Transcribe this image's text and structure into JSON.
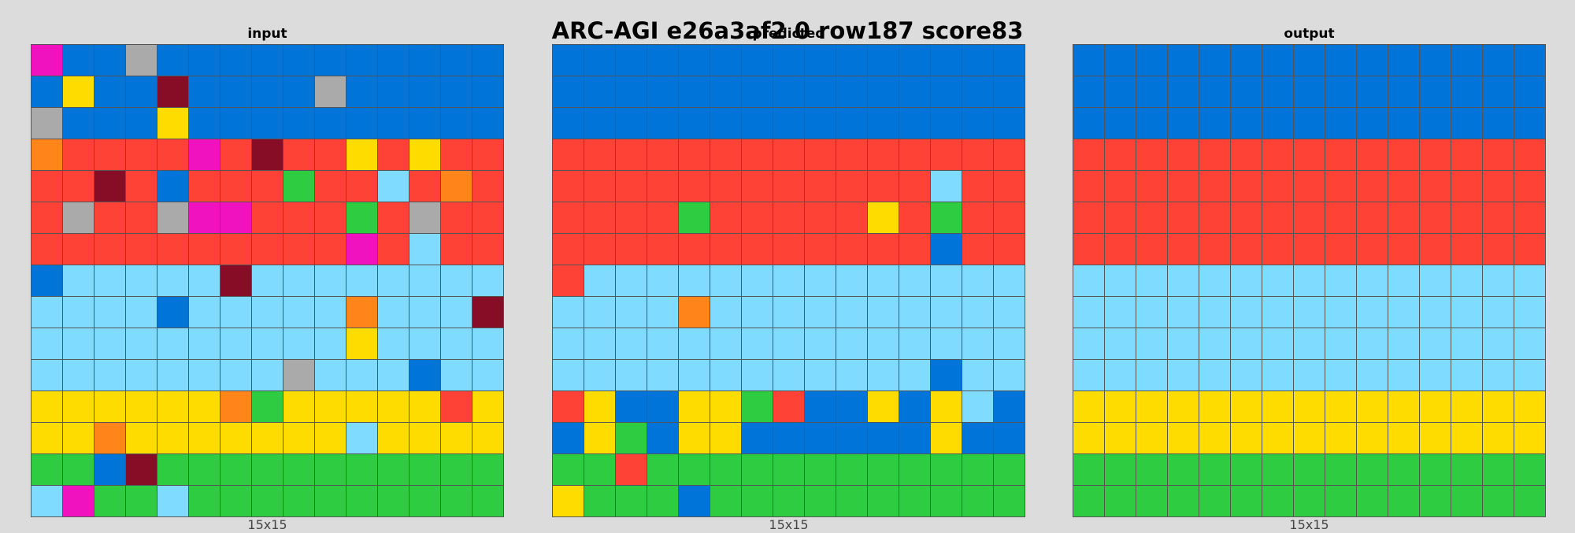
{
  "title": "ARC-AGI e26a3af2 0 row187 score83",
  "palette": {
    "0": "#000000",
    "1": "#0074d9",
    "2": "#ff4136",
    "3": "#2ecc40",
    "4": "#ffdc00",
    "5": "#aaaaaa",
    "6": "#f012be",
    "7": "#ff851b",
    "8": "#7fdbff",
    "9": "#870c25"
  },
  "panels": [
    {
      "title": "input",
      "size_label": "15x15",
      "grid": [
        [
          6,
          1,
          1,
          5,
          1,
          1,
          1,
          1,
          1,
          1,
          1,
          1,
          1,
          1,
          1
        ],
        [
          1,
          4,
          1,
          1,
          9,
          1,
          1,
          1,
          1,
          5,
          1,
          1,
          1,
          1,
          1
        ],
        [
          5,
          1,
          1,
          1,
          4,
          1,
          1,
          1,
          1,
          1,
          1,
          1,
          1,
          1,
          1
        ],
        [
          7,
          2,
          2,
          2,
          2,
          6,
          2,
          9,
          2,
          2,
          4,
          2,
          4,
          2,
          2
        ],
        [
          2,
          2,
          9,
          2,
          1,
          2,
          2,
          2,
          3,
          2,
          2,
          8,
          2,
          7,
          2
        ],
        [
          2,
          5,
          2,
          2,
          5,
          6,
          6,
          2,
          2,
          2,
          3,
          2,
          5,
          2,
          2
        ],
        [
          2,
          2,
          2,
          2,
          2,
          2,
          2,
          2,
          2,
          2,
          6,
          2,
          8,
          2,
          2
        ],
        [
          1,
          8,
          8,
          8,
          8,
          8,
          9,
          8,
          8,
          8,
          8,
          8,
          8,
          8,
          8
        ],
        [
          8,
          8,
          8,
          8,
          1,
          8,
          8,
          8,
          8,
          8,
          7,
          8,
          8,
          8,
          9
        ],
        [
          8,
          8,
          8,
          8,
          8,
          8,
          8,
          8,
          8,
          8,
          4,
          8,
          8,
          8,
          8
        ],
        [
          8,
          8,
          8,
          8,
          8,
          8,
          8,
          8,
          5,
          8,
          8,
          8,
          1,
          8,
          8
        ],
        [
          4,
          4,
          4,
          4,
          4,
          4,
          7,
          3,
          4,
          4,
          4,
          4,
          4,
          2,
          4
        ],
        [
          4,
          4,
          7,
          4,
          4,
          4,
          4,
          4,
          4,
          4,
          8,
          4,
          4,
          4,
          4
        ],
        [
          3,
          3,
          1,
          9,
          3,
          3,
          3,
          3,
          3,
          3,
          3,
          3,
          3,
          3,
          3
        ],
        [
          8,
          6,
          3,
          3,
          8,
          3,
          3,
          3,
          3,
          3,
          3,
          3,
          3,
          3,
          3
        ]
      ]
    },
    {
      "title": "predicted",
      "size_label": "15x15",
      "grid": [
        [
          1,
          1,
          1,
          1,
          1,
          1,
          1,
          1,
          1,
          1,
          1,
          1,
          1,
          1,
          1
        ],
        [
          1,
          1,
          1,
          1,
          1,
          1,
          1,
          1,
          1,
          1,
          1,
          1,
          1,
          1,
          1
        ],
        [
          1,
          1,
          1,
          1,
          1,
          1,
          1,
          1,
          1,
          1,
          1,
          1,
          1,
          1,
          1
        ],
        [
          2,
          2,
          2,
          2,
          2,
          2,
          2,
          2,
          2,
          2,
          2,
          2,
          2,
          2,
          2
        ],
        [
          2,
          2,
          2,
          2,
          2,
          2,
          2,
          2,
          2,
          2,
          2,
          2,
          8,
          2,
          2
        ],
        [
          2,
          2,
          2,
          2,
          3,
          2,
          2,
          2,
          2,
          2,
          4,
          2,
          3,
          2,
          2
        ],
        [
          2,
          2,
          2,
          2,
          2,
          2,
          2,
          2,
          2,
          2,
          2,
          2,
          1,
          2,
          2
        ],
        [
          2,
          8,
          8,
          8,
          8,
          8,
          8,
          8,
          8,
          8,
          8,
          8,
          8,
          8,
          8
        ],
        [
          8,
          8,
          8,
          8,
          7,
          8,
          8,
          8,
          8,
          8,
          8,
          8,
          8,
          8,
          8
        ],
        [
          8,
          8,
          8,
          8,
          8,
          8,
          8,
          8,
          8,
          8,
          8,
          8,
          8,
          8,
          8
        ],
        [
          8,
          8,
          8,
          8,
          8,
          8,
          8,
          8,
          8,
          8,
          8,
          8,
          1,
          8,
          8
        ],
        [
          2,
          4,
          1,
          1,
          4,
          4,
          3,
          2,
          1,
          1,
          4,
          1,
          4,
          8,
          1
        ],
        [
          1,
          4,
          3,
          1,
          4,
          4,
          1,
          1,
          1,
          1,
          1,
          1,
          4,
          1,
          1
        ],
        [
          3,
          3,
          2,
          3,
          3,
          3,
          3,
          3,
          3,
          3,
          3,
          3,
          3,
          3,
          3
        ],
        [
          4,
          3,
          3,
          3,
          1,
          3,
          3,
          3,
          3,
          3,
          3,
          3,
          3,
          3,
          3
        ]
      ]
    },
    {
      "title": "output",
      "size_label": "15x15",
      "grid": [
        [
          1,
          1,
          1,
          1,
          1,
          1,
          1,
          1,
          1,
          1,
          1,
          1,
          1,
          1,
          1
        ],
        [
          1,
          1,
          1,
          1,
          1,
          1,
          1,
          1,
          1,
          1,
          1,
          1,
          1,
          1,
          1
        ],
        [
          1,
          1,
          1,
          1,
          1,
          1,
          1,
          1,
          1,
          1,
          1,
          1,
          1,
          1,
          1
        ],
        [
          2,
          2,
          2,
          2,
          2,
          2,
          2,
          2,
          2,
          2,
          2,
          2,
          2,
          2,
          2
        ],
        [
          2,
          2,
          2,
          2,
          2,
          2,
          2,
          2,
          2,
          2,
          2,
          2,
          2,
          2,
          2
        ],
        [
          2,
          2,
          2,
          2,
          2,
          2,
          2,
          2,
          2,
          2,
          2,
          2,
          2,
          2,
          2
        ],
        [
          2,
          2,
          2,
          2,
          2,
          2,
          2,
          2,
          2,
          2,
          2,
          2,
          2,
          2,
          2
        ],
        [
          8,
          8,
          8,
          8,
          8,
          8,
          8,
          8,
          8,
          8,
          8,
          8,
          8,
          8,
          8
        ],
        [
          8,
          8,
          8,
          8,
          8,
          8,
          8,
          8,
          8,
          8,
          8,
          8,
          8,
          8,
          8
        ],
        [
          8,
          8,
          8,
          8,
          8,
          8,
          8,
          8,
          8,
          8,
          8,
          8,
          8,
          8,
          8
        ],
        [
          8,
          8,
          8,
          8,
          8,
          8,
          8,
          8,
          8,
          8,
          8,
          8,
          8,
          8,
          8
        ],
        [
          4,
          4,
          4,
          4,
          4,
          4,
          4,
          4,
          4,
          4,
          4,
          4,
          4,
          4,
          4
        ],
        [
          4,
          4,
          4,
          4,
          4,
          4,
          4,
          4,
          4,
          4,
          4,
          4,
          4,
          4,
          4
        ],
        [
          3,
          3,
          3,
          3,
          3,
          3,
          3,
          3,
          3,
          3,
          3,
          3,
          3,
          3,
          3
        ],
        [
          3,
          3,
          3,
          3,
          3,
          3,
          3,
          3,
          3,
          3,
          3,
          3,
          3,
          3,
          3
        ]
      ]
    }
  ]
}
